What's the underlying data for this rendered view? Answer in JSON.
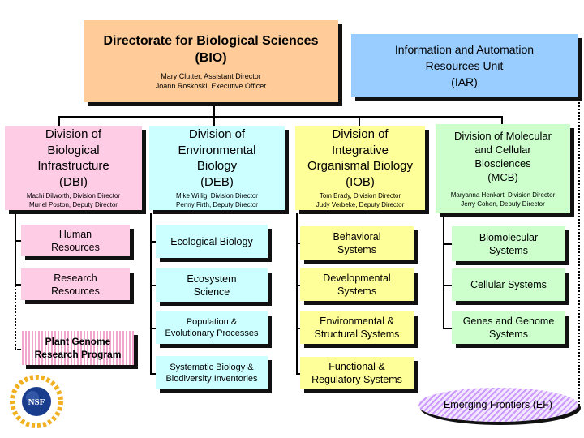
{
  "directorate": {
    "title": "Directorate for Biological Sciences\n(BIO)",
    "staff": "Mary Clutter, Assistant Director\nJoann Roskoski, Executive Officer",
    "color": "#ffcc99"
  },
  "iar": {
    "title": "Information and Automation\nResources Unit\n(IAR)",
    "color": "#99ccff"
  },
  "divisions": [
    {
      "title": "Division of\nBiological\nInfrastructure\n(DBI)",
      "staff": "Machi Dilworth, Division Director\nMuriel Poston, Deputy Director",
      "color": "#ffcce6",
      "units": [
        "Human\nResources",
        "Research\nResources",
        "Plant Genome\nResearch Program"
      ]
    },
    {
      "title": "Division of\nEnvironmental\nBiology\n(DEB)",
      "staff": "Mike Willig, Division Director\nPenny Firth, Deputy Director",
      "color": "#ccffff",
      "units": [
        "Ecological Biology",
        "Ecosystem\nScience",
        "Population &\nEvolutionary Processes",
        "Systematic Biology &\nBiodiversity Inventories"
      ]
    },
    {
      "title": "Division of\nIntegrative\nOrganismal Biology\n(IOB)",
      "staff": "Tom Brady, Division Director\nJudy Verbeke, Deputy Director",
      "color": "#ffff99",
      "units": [
        "Behavioral\nSystems",
        "Developmental\nSystems",
        "Environmental &\nStructural Systems",
        "Functional &\nRegulatory Systems"
      ]
    },
    {
      "title": "Division of Molecular\nand Cellular\nBiosciences\n(MCB)",
      "staff": "Maryanna Henkart, Division Director\nJerry Cohen, Deputy Director",
      "color": "#ccffcc",
      "units": [
        "Biomolecular\nSystems",
        "Cellular Systems",
        "Genes and Genome\nSystems"
      ]
    }
  ],
  "emerging": {
    "label": "Emerging Frontiers (EF)",
    "color": "#cc99ff"
  },
  "logo": {
    "text": "NSF"
  }
}
